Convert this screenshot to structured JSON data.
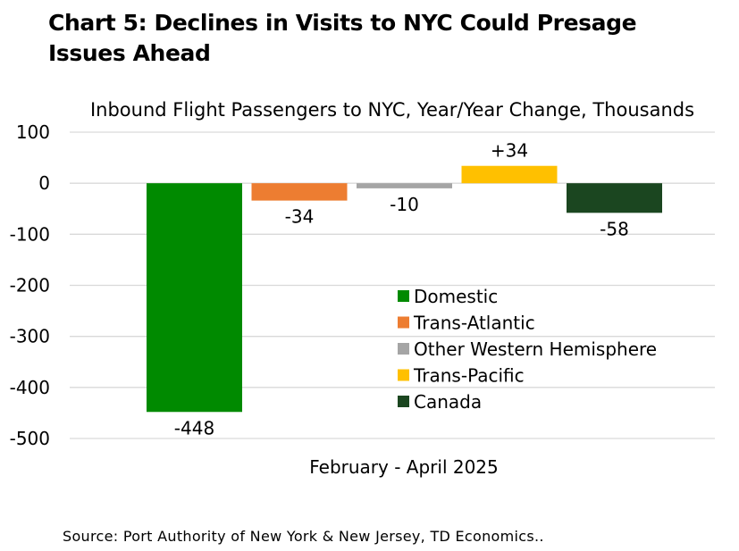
{
  "title_lines": [
    "Chart 5: Declines in Visits to NYC Could Presage",
    "Issues Ahead"
  ],
  "source": "Source: Port Authority of New York & New Jersey, TD Economics..",
  "chart_data": {
    "type": "bar",
    "title": "Inbound Flight Passengers to NYC, Year/Year Change, Thousands",
    "xlabel": "February - April 2025",
    "ylabel": "",
    "ylim": [
      -500,
      100
    ],
    "yticks": [
      100,
      0,
      -100,
      -200,
      -300,
      -400,
      -500
    ],
    "ytick_labels": [
      "100",
      "0",
      "-100",
      "-200",
      "-300",
      "-400",
      "-500"
    ],
    "grid": true,
    "legend_position": "center-right",
    "categories": [
      "February - April 2025"
    ],
    "series": [
      {
        "name": "Domestic",
        "values": [
          -448
        ],
        "label": "-448",
        "color": "#008a00"
      },
      {
        "name": "Trans-Atlantic",
        "values": [
          -34
        ],
        "label": "-34",
        "color": "#ed7d31"
      },
      {
        "name": "Other Western Hemisphere",
        "values": [
          -10
        ],
        "label": "-10",
        "color": "#a5a5a5"
      },
      {
        "name": "Trans-Pacific",
        "values": [
          34
        ],
        "label": "+34",
        "color": "#ffc000"
      },
      {
        "name": "Canada",
        "values": [
          -58
        ],
        "label": "-58",
        "color": "#1b4620"
      }
    ]
  }
}
